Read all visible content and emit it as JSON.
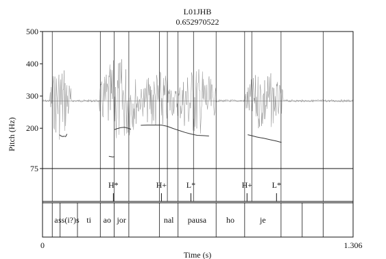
{
  "chart_data": {
    "type": "line",
    "title": "L01JHB",
    "subtitle": "0.652970522",
    "xlabel": "Time (s)",
    "ylabel": "Pitch (Hz)",
    "xlim": [
      0,
      1.306
    ],
    "ylim": [
      75,
      500
    ],
    "x_tick_labels": [
      "0",
      "1.306"
    ],
    "y_ticks": [
      {
        "value": 75,
        "label": "75"
      },
      {
        "value": 200,
        "label": "200"
      },
      {
        "value": 300,
        "label": "300"
      },
      {
        "value": 400,
        "label": "400"
      },
      {
        "value": 500,
        "label": "500"
      }
    ],
    "pitch_segments": [
      [
        [
          0.071,
          180
        ],
        [
          0.078,
          176
        ],
        [
          0.086,
          174
        ],
        [
          0.093,
          176
        ]
      ],
      [
        [
          0.094,
          173
        ],
        [
          0.098,
          175
        ],
        [
          0.103,
          182
        ]
      ],
      [
        [
          0.279,
          113
        ],
        [
          0.286,
          112
        ],
        [
          0.296,
          111
        ],
        [
          0.303,
          112
        ]
      ],
      [
        [
          0.303,
          196
        ],
        [
          0.315,
          199
        ],
        [
          0.33,
          202
        ],
        [
          0.345,
          203
        ],
        [
          0.36,
          200
        ],
        [
          0.372,
          197
        ]
      ],
      [
        [
          0.413,
          209
        ],
        [
          0.44,
          210
        ],
        [
          0.47,
          210
        ],
        [
          0.5,
          210
        ],
        [
          0.525,
          206
        ],
        [
          0.55,
          199
        ],
        [
          0.575,
          193
        ],
        [
          0.6,
          187
        ],
        [
          0.625,
          182
        ],
        [
          0.65,
          178
        ],
        [
          0.68,
          177
        ],
        [
          0.7,
          176
        ]
      ],
      [
        [
          0.863,
          180
        ],
        [
          0.88,
          177
        ],
        [
          0.9,
          173
        ],
        [
          0.93,
          169
        ],
        [
          0.96,
          164
        ],
        [
          0.985,
          160
        ],
        [
          1.005,
          156
        ]
      ]
    ],
    "reference_line": {
      "value": 285
    },
    "waveform_regions": [
      {
        "start": 0.03,
        "end": 0.12,
        "amplitude": 0.9
      },
      {
        "start": 0.24,
        "end": 0.41,
        "amplitude": 1.0
      },
      {
        "start": 0.41,
        "end": 0.56,
        "amplitude": 0.7
      },
      {
        "start": 0.56,
        "end": 0.73,
        "amplitude": 0.8
      },
      {
        "start": 0.85,
        "end": 1.01,
        "amplitude": 0.7
      }
    ],
    "tones": [
      {
        "label": "H*",
        "time": 0.298
      },
      {
        "label": "H+",
        "time": 0.5
      },
      {
        "label": "L*",
        "time": 0.624
      },
      {
        "label": "H+",
        "time": 0.86
      },
      {
        "label": "L*",
        "time": 0.984
      }
    ],
    "tone_boundaries": [
      0.041,
      0.243,
      0.301,
      0.363,
      0.492,
      0.525,
      0.57,
      0.635,
      0.73,
      0.85,
      0.88,
      1.003,
      1.18
    ],
    "syllable_boundaries": [
      0.041,
      0.074,
      0.147,
      0.243,
      0.301,
      0.363,
      0.492,
      0.57,
      0.73,
      0.85,
      1.003,
      1.092,
      1.18
    ],
    "syllables": [
      "a",
      "ss(i?)s",
      "ti",
      "ao",
      "jor",
      "",
      "nal",
      "pausa",
      "ho",
      "je",
      ""
    ]
  }
}
